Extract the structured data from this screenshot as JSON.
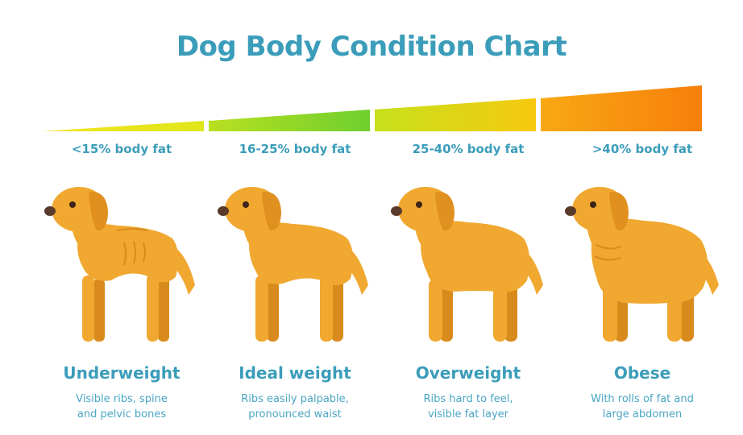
{
  "title": "Dog Body Condition Chart",
  "colors": {
    "title": "#3b9dba",
    "label": "#3b9dba",
    "description": "#4aa6c4",
    "dog_body": "#f0a830",
    "dog_shadow": "#d98a1c",
    "ear": "#e0901f",
    "nose": "#5a3a2a",
    "eye": "#3d2418"
  },
  "scale": {
    "segment_gradients": [
      [
        "#f3e320",
        "#dfe61a"
      ],
      [
        "#b8e020",
        "#6fcf2e"
      ],
      [
        "#c6e01c",
        "#f6c90e"
      ],
      [
        "#f9a813",
        "#f77f0c"
      ]
    ]
  },
  "conditions": [
    {
      "fat_range": "<15% body fat",
      "category": "Underweight",
      "description_lines": [
        "Visible ribs, spine",
        "and pelvic bones"
      ]
    },
    {
      "fat_range": "16-25% body fat",
      "category": "Ideal weight",
      "description_lines": [
        "Ribs easily palpable,",
        "pronounced waist"
      ]
    },
    {
      "fat_range": "25-40% body fat",
      "category": "Overweight",
      "description_lines": [
        "Ribs hard to feel,",
        "visible fat layer"
      ]
    },
    {
      "fat_range": ">40% body fat",
      "category": "Obese",
      "description_lines": [
        "With rolls of fat and",
        "large abdomen"
      ]
    }
  ]
}
